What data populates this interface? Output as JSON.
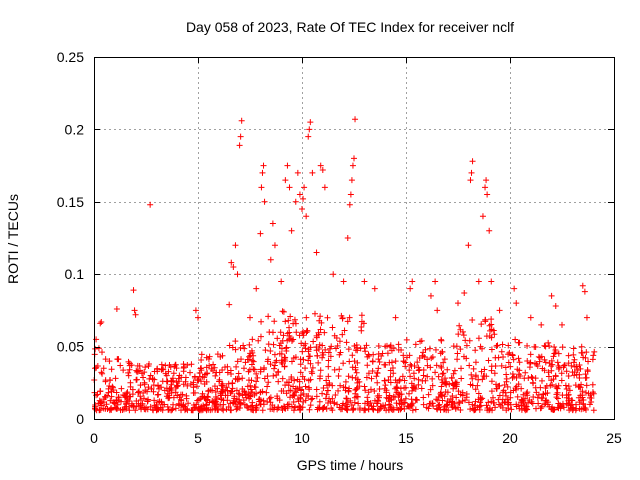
{
  "chart_data": {
    "type": "scatter",
    "title": "Day 058 of 2023, Rate Of TEC Index for receiver nclf",
    "xlabel": "GPS time / hours",
    "ylabel": "ROTI / TECUs",
    "xlim": [
      0,
      25
    ],
    "ylim": [
      0,
      0.25
    ],
    "xticks": [
      0,
      5,
      10,
      15,
      20,
      25
    ],
    "xtick_labels": [
      "0",
      "5",
      "10",
      "15",
      "20",
      "25"
    ],
    "yticks": [
      0,
      0.05,
      0.1,
      0.15,
      0.2,
      0.25
    ],
    "ytick_labels": [
      "0",
      "0.05",
      "0.1",
      "0.15",
      "0.2",
      "0.25"
    ],
    "grid": true,
    "marker": "+",
    "marker_color": "#ff0000",
    "series": [
      {
        "name": "ROTI",
        "description": "dense band of points across 0-24 h, mostly 0.005-0.05 TECU/s",
        "sample_points": [
          [
            0.1,
            0.055
          ],
          [
            0.3,
            0.066
          ],
          [
            0.35,
            0.067
          ],
          [
            1.1,
            0.076
          ],
          [
            1.9,
            0.089
          ],
          [
            1.95,
            0.075
          ],
          [
            2.0,
            0.072
          ],
          [
            2.7,
            0.148
          ],
          [
            4.9,
            0.075
          ],
          [
            5.0,
            0.07
          ],
          [
            6.5,
            0.079
          ],
          [
            6.6,
            0.108
          ],
          [
            6.7,
            0.105
          ],
          [
            6.8,
            0.12
          ],
          [
            6.9,
            0.1
          ],
          [
            7.0,
            0.189
          ],
          [
            7.05,
            0.195
          ],
          [
            7.1,
            0.206
          ],
          [
            7.5,
            0.07
          ],
          [
            7.8,
            0.09
          ],
          [
            8.0,
            0.128
          ],
          [
            8.05,
            0.16
          ],
          [
            8.1,
            0.17
          ],
          [
            8.15,
            0.175
          ],
          [
            8.2,
            0.15
          ],
          [
            8.5,
            0.11
          ],
          [
            8.6,
            0.135
          ],
          [
            8.7,
            0.12
          ],
          [
            9.0,
            0.095
          ],
          [
            9.2,
            0.165
          ],
          [
            9.3,
            0.175
          ],
          [
            9.4,
            0.16
          ],
          [
            9.5,
            0.13
          ],
          [
            9.7,
            0.15
          ],
          [
            9.8,
            0.17
          ],
          [
            9.9,
            0.155
          ],
          [
            10.0,
            0.145
          ],
          [
            10.05,
            0.152
          ],
          [
            10.1,
            0.16
          ],
          [
            10.2,
            0.14
          ],
          [
            10.3,
            0.195
          ],
          [
            10.35,
            0.2
          ],
          [
            10.4,
            0.205
          ],
          [
            10.5,
            0.17
          ],
          [
            10.7,
            0.115
          ],
          [
            10.9,
            0.175
          ],
          [
            11.0,
            0.172
          ],
          [
            11.1,
            0.16
          ],
          [
            11.5,
            0.1
          ],
          [
            12.0,
            0.095
          ],
          [
            12.2,
            0.125
          ],
          [
            12.3,
            0.148
          ],
          [
            12.35,
            0.155
          ],
          [
            12.4,
            0.165
          ],
          [
            12.45,
            0.175
          ],
          [
            12.5,
            0.18
          ],
          [
            12.55,
            0.207
          ],
          [
            13.0,
            0.095
          ],
          [
            13.5,
            0.09
          ],
          [
            14.5,
            0.07
          ],
          [
            15.2,
            0.09
          ],
          [
            15.3,
            0.095
          ],
          [
            16.2,
            0.085
          ],
          [
            16.4,
            0.095
          ],
          [
            16.5,
            0.075
          ],
          [
            17.5,
            0.08
          ],
          [
            17.8,
            0.087
          ],
          [
            18.0,
            0.12
          ],
          [
            18.1,
            0.165
          ],
          [
            18.15,
            0.17
          ],
          [
            18.2,
            0.178
          ],
          [
            18.5,
            0.095
          ],
          [
            18.7,
            0.14
          ],
          [
            18.8,
            0.16
          ],
          [
            18.85,
            0.165
          ],
          [
            18.9,
            0.155
          ],
          [
            19.0,
            0.13
          ],
          [
            19.1,
            0.095
          ],
          [
            19.5,
            0.075
          ],
          [
            20.2,
            0.09
          ],
          [
            20.3,
            0.08
          ],
          [
            21.0,
            0.07
          ],
          [
            21.5,
            0.065
          ],
          [
            22.0,
            0.085
          ],
          [
            22.2,
            0.078
          ],
          [
            22.5,
            0.065
          ],
          [
            23.5,
            0.092
          ],
          [
            23.6,
            0.088
          ],
          [
            23.7,
            0.07
          ]
        ]
      }
    ]
  }
}
